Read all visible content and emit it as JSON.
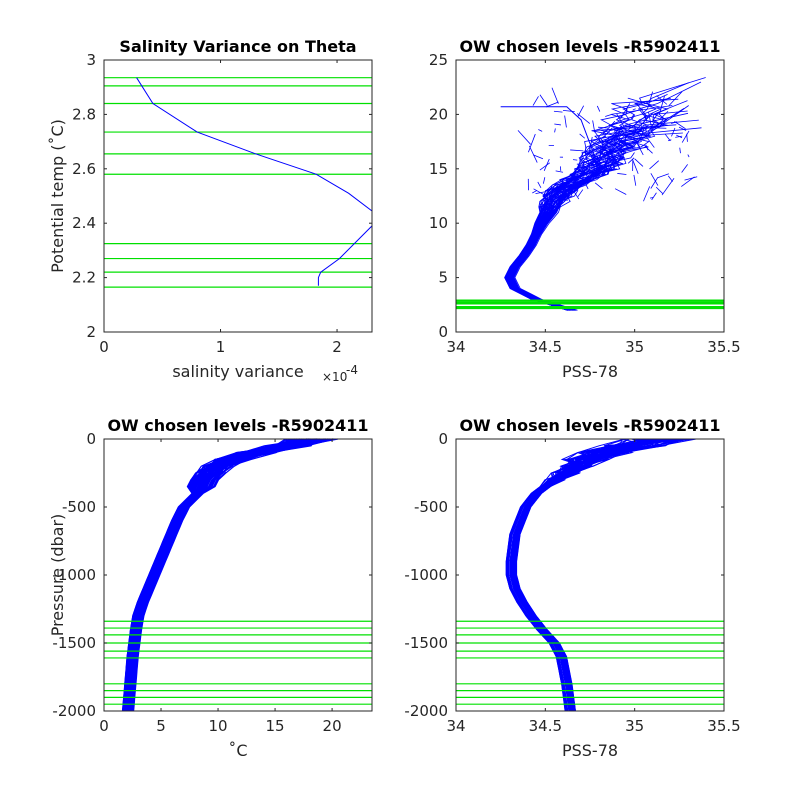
{
  "chart_data": [
    {
      "id": "p1",
      "type": "line",
      "title": "Salinity Variance on Theta",
      "xlabel": "salinity variance",
      "xlabel_exponent_base": "×10",
      "xlabel_exponent": "-4",
      "ylabel": "Potential temp (˚C)",
      "xlim": [
        0,
        2.3
      ],
      "ylim": [
        2,
        3
      ],
      "xticks": [
        0,
        1,
        2
      ],
      "xtick_labels": [
        "0",
        "1",
        "2"
      ],
      "yticks": [
        2,
        2.2,
        2.4,
        2.6,
        2.8,
        3
      ],
      "ytick_labels": [
        "2",
        "2.2",
        "2.4",
        "2.6",
        "2.8",
        "3"
      ],
      "grid": false,
      "series": [
        {
          "color": "#0000ff",
          "x": [
            0.28,
            0.42,
            0.8,
            1.3,
            1.82,
            2.1,
            2.3,
            2.3,
            2.02,
            1.86,
            1.84,
            1.84
          ],
          "y": [
            2.935,
            2.84,
            2.735,
            2.655,
            2.58,
            2.51,
            2.445,
            2.39,
            2.27,
            2.22,
            2.2,
            2.17
          ]
        }
      ],
      "hlines": {
        "color": "#00e000",
        "values": [
          2.935,
          2.905,
          2.84,
          2.735,
          2.655,
          2.58,
          2.325,
          2.27,
          2.22,
          2.165
        ]
      }
    },
    {
      "id": "p2",
      "type": "line",
      "title": "OW chosen levels -R5902411",
      "xlabel": "PSS-78",
      "ylabel": "",
      "xlim": [
        34,
        35.5
      ],
      "ylim": [
        0,
        25
      ],
      "xticks": [
        34,
        34.5,
        35,
        35.5
      ],
      "xtick_labels": [
        "34",
        "34.5",
        "35",
        "35.5"
      ],
      "yticks": [
        0,
        5,
        10,
        15,
        20,
        25
      ],
      "ytick_labels": [
        "0",
        "5",
        "10",
        "15",
        "20",
        "25"
      ],
      "grid": false,
      "series_color": "#0000ff",
      "note": "many float profiles of potential temperature vs salinity",
      "envelope": {
        "y": [
          2.0,
          2.5,
          3.0,
          4.0,
          5.0,
          6.0,
          7.0,
          8.0,
          9.0,
          10.0,
          11.0,
          12.0,
          13.0,
          14.0,
          15.0,
          16.0,
          17.0,
          18.0,
          19.0,
          20.0
        ],
        "x": [
          34.65,
          34.55,
          34.45,
          34.33,
          34.3,
          34.33,
          34.38,
          34.42,
          34.45,
          34.48,
          34.52,
          34.55,
          34.6,
          34.7,
          34.8,
          34.85,
          34.9,
          34.95,
          35.0,
          35.1
        ]
      },
      "hlines": {
        "color": "#00e000",
        "values": [
          2.16,
          2.22,
          2.27,
          2.33,
          2.58,
          2.66,
          2.74,
          2.84,
          2.905,
          2.935
        ]
      }
    },
    {
      "id": "p3",
      "type": "line",
      "title": "OW chosen levels -R5902411",
      "xlabel": "˚C",
      "ylabel": "Pressure (dbar)",
      "xlim": [
        0,
        23.5
      ],
      "ylim": [
        -2000,
        0
      ],
      "xticks": [
        0,
        5,
        10,
        15,
        20
      ],
      "xtick_labels": [
        "0",
        "5",
        "10",
        "15",
        "20"
      ],
      "yticks": [
        -2000,
        -1500,
        -1000,
        -500,
        0
      ],
      "ytick_labels": [
        "-2000",
        "-1500",
        "-1000",
        "-500",
        "0"
      ],
      "grid": false,
      "series_color": "#0000ff",
      "note": "many float profiles of temperature vs pressure",
      "envelope": {
        "p": [
          -2000,
          -1800,
          -1600,
          -1400,
          -1300,
          -1200,
          -1100,
          -1000,
          -900,
          -800,
          -700,
          -600,
          -500,
          -450,
          -400,
          -300,
          -250,
          -200,
          -150,
          -100,
          -50,
          0
        ],
        "t": [
          2.1,
          2.3,
          2.5,
          2.8,
          3.0,
          3.4,
          3.9,
          4.4,
          4.9,
          5.4,
          5.9,
          6.4,
          7.0,
          7.6,
          8.2,
          8.8,
          9.3,
          9.8,
          11.0,
          13.0,
          15.5,
          17.5
        ]
      },
      "hlines": {
        "color": "#00e000",
        "values": [
          -1340,
          -1390,
          -1440,
          -1500,
          -1560,
          -1610,
          -1800,
          -1850,
          -1900,
          -1950
        ]
      }
    },
    {
      "id": "p4",
      "type": "line",
      "title": "OW chosen levels -R5902411",
      "xlabel": "PSS-78",
      "ylabel": "",
      "xlim": [
        34,
        35.5
      ],
      "ylim": [
        -2000,
        0
      ],
      "xticks": [
        34,
        34.5,
        35,
        35.5
      ],
      "xtick_labels": [
        "34",
        "34.5",
        "35",
        "35.5"
      ],
      "yticks": [
        -2000,
        -1500,
        -1000,
        -500,
        0
      ],
      "ytick_labels": [
        "-2000",
        "-1500",
        "-1000",
        "-500",
        "0"
      ],
      "grid": false,
      "series_color": "#0000ff",
      "note": "many float profiles of salinity vs pressure",
      "envelope": {
        "p": [
          -2000,
          -1800,
          -1600,
          -1500,
          -1400,
          -1300,
          -1200,
          -1100,
          -1000,
          -900,
          -800,
          -700,
          -600,
          -500,
          -450,
          -400,
          -350,
          -300,
          -250,
          -200,
          -150,
          -100,
          -50,
          0
        ],
        "s": [
          34.64,
          34.62,
          34.59,
          34.55,
          34.48,
          34.42,
          34.37,
          34.33,
          34.31,
          34.31,
          34.32,
          34.33,
          34.36,
          34.39,
          34.42,
          34.45,
          34.5,
          34.55,
          34.6,
          34.65,
          34.7,
          34.8,
          34.95,
          35.1
        ]
      },
      "hlines": {
        "color": "#00e000",
        "values": [
          -1340,
          -1390,
          -1440,
          -1500,
          -1560,
          -1610,
          -1800,
          -1850,
          -1900,
          -1950
        ]
      }
    }
  ]
}
